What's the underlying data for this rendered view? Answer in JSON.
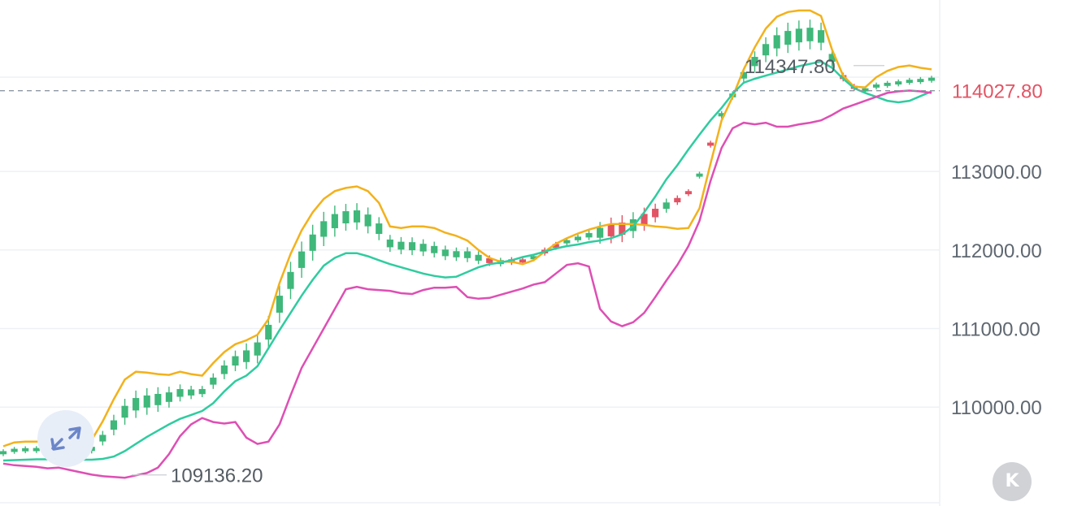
{
  "chart_data": {
    "type": "candlestick",
    "overlay": "bollinger_bands",
    "y_axis": {
      "position": "right",
      "ticks": [
        "113000.00",
        "112000.00",
        "111000.00",
        "110000.00"
      ],
      "range": [
        108750,
        115200
      ]
    },
    "grid": {
      "horizontal": true,
      "vertical": false
    },
    "current_price": "114027.80",
    "high_label": "114347.80",
    "low_label": "109136.20",
    "colors": {
      "up": "#3fb87a",
      "down": "#e25464",
      "upper_band": "#f3b11b",
      "middle_band": "#2fcc9f",
      "lower_band": "#de4fb4",
      "current_line": "#8d96a3",
      "grid": "#eef1f5"
    },
    "upper_band": [
      109500,
      109550,
      109560,
      109560,
      109560,
      109580,
      109600,
      109560,
      109580,
      109820,
      110100,
      110350,
      110450,
      110440,
      110420,
      110410,
      110450,
      110420,
      110400,
      110560,
      110700,
      110800,
      110850,
      110920,
      111120,
      111580,
      111950,
      112250,
      112480,
      112650,
      112750,
      112790,
      112810,
      112750,
      112600,
      112300,
      112280,
      112300,
      112300,
      112280,
      112220,
      112180,
      112120,
      112000,
      111900,
      111850,
      111850,
      111820,
      111870,
      111980,
      112080,
      112150,
      112210,
      112260,
      112300,
      112330,
      112330,
      112330,
      112320,
      112300,
      112290,
      112270,
      112280,
      112530,
      113100,
      113650,
      113950,
      114300,
      114580,
      114820,
      114970,
      115030,
      115050,
      115050,
      114980,
      114550,
      114220,
      114080,
      114070,
      114200,
      114280,
      114330,
      114350,
      114320,
      114300
    ],
    "middle_band": [
      109320,
      109325,
      109330,
      109335,
      109335,
      109335,
      109330,
      109330,
      109330,
      109340,
      109370,
      109440,
      109530,
      109620,
      109700,
      109780,
      109850,
      109900,
      109950,
      110050,
      110200,
      110330,
      110400,
      110520,
      110750,
      110980,
      111200,
      111420,
      111620,
      111800,
      111900,
      111960,
      111960,
      111920,
      111870,
      111820,
      111780,
      111740,
      111700,
      111670,
      111650,
      111660,
      111720,
      111780,
      111820,
      111840,
      111870,
      111910,
      111940,
      111980,
      112020,
      112050,
      112070,
      112100,
      112120,
      112150,
      112200,
      112300,
      112480,
      112680,
      112900,
      113080,
      113280,
      113470,
      113650,
      113810,
      113990,
      114130,
      114180,
      114220,
      114260,
      114300,
      114340,
      114370,
      114400,
      114320,
      114180,
      114060,
      114000,
      113950,
      113900,
      113880,
      113900,
      113960,
      114020
    ],
    "lower_band": [
      109280,
      109260,
      109250,
      109240,
      109220,
      109230,
      109200,
      109170,
      109140,
      109120,
      109110,
      109100,
      109130,
      109160,
      109230,
      109400,
      109630,
      109780,
      109860,
      109810,
      109790,
      109810,
      109610,
      109530,
      109560,
      109780,
      110150,
      110500,
      110750,
      111000,
      111250,
      111500,
      111530,
      111500,
      111490,
      111480,
      111450,
      111440,
      111490,
      111520,
      111520,
      111530,
      111400,
      111380,
      111390,
      111430,
      111470,
      111510,
      111560,
      111590,
      111700,
      111810,
      111830,
      111790,
      111250,
      111090,
      111030,
      111080,
      111200,
      111400,
      111610,
      111810,
      112050,
      112370,
      112880,
      113300,
      113550,
      113620,
      113600,
      113620,
      113570,
      113570,
      113600,
      113620,
      113650,
      113720,
      113800,
      113850,
      113900,
      113950,
      114000,
      114020,
      114030,
      114020,
      114000
    ]
  }
}
